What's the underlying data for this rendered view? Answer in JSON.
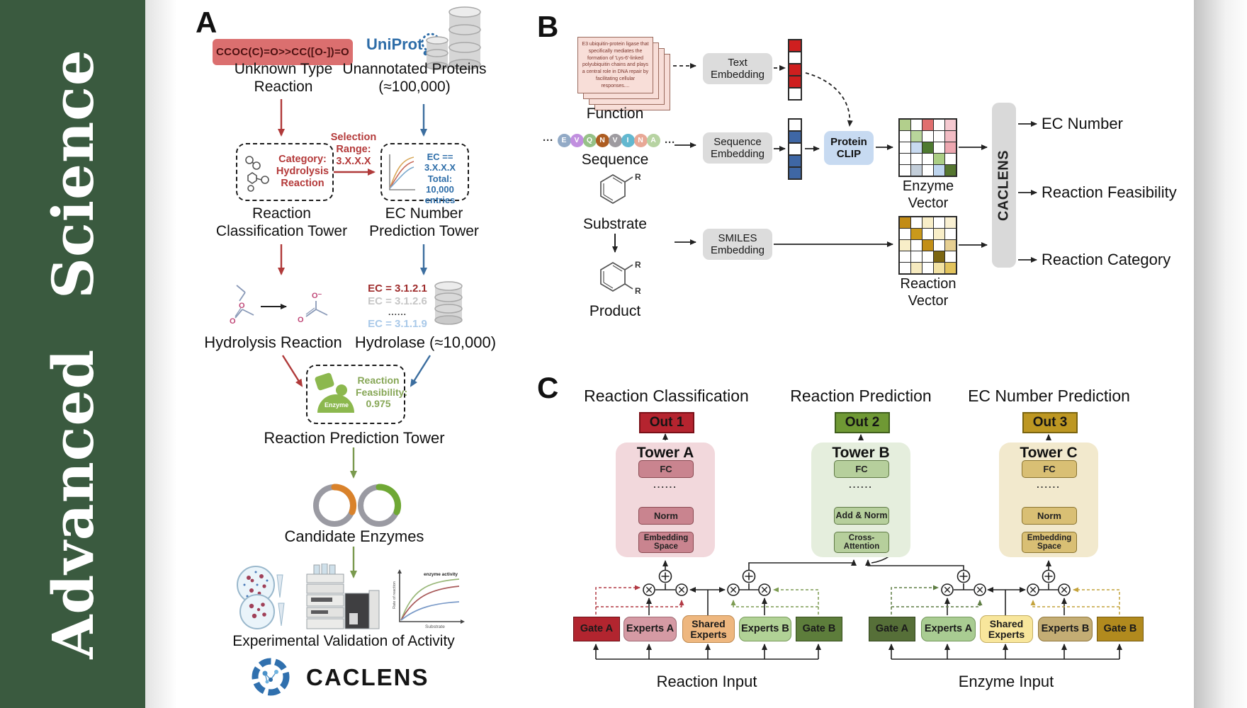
{
  "journal": {
    "name": "Advanced Science"
  },
  "panelA": {
    "label": "A",
    "smiles": "CCOC(C)=O>>CC([O-])=O",
    "unknown_type": "Unknown Type Reaction",
    "uniprot": "UniProt",
    "unannotated": "Unannotated Proteins (≈100,000)",
    "selection": "Selection Range: 3.X.X.X",
    "category": "Category: Hydrolysis Reaction",
    "classification_tower": "Reaction Classification Tower",
    "ec_filter": "EC == 3.X.X.X Total: 10,000 entries",
    "prediction_tower": "EC Number Prediction Tower",
    "hydrolysis": "Hydrolysis Reaction",
    "ec_list": [
      "EC = 3.1.2.1",
      "EC = 3.1.2.6",
      "......",
      "EC = 3.1.1.9"
    ],
    "hydrolase": "Hydrolase (≈10,000)",
    "enzyme": "Enzyme",
    "feasibility": "Reaction Feasibility: 0.975",
    "reaction_prediction_tower": "Reaction Prediction Tower",
    "candidate": "Candidate Enzymes",
    "activity_graph": {
      "ylabel": "Rate of reaction",
      "xlabel": "Substrate",
      "annotation": "enzyme activity"
    },
    "validation": "Experimental Validation of Activity",
    "wordmark": "CACLENS"
  },
  "panelB": {
    "label": "B",
    "function_text": "E3 ubiquitin-protein ligase that specifically mediates the formation of 'Lys-6'-linked polyubiquitin chains and plays a central role in DNA repair by facilitating cellular responses....",
    "function": "Function",
    "dots": "···",
    "residues": [
      {
        "t": "E",
        "c": "#92aac6"
      },
      {
        "t": "V",
        "c": "#c18fdf"
      },
      {
        "t": "Q",
        "c": "#96c187"
      },
      {
        "t": "N",
        "c": "#ad5c21"
      },
      {
        "t": "V",
        "c": "#9e9ba0"
      },
      {
        "t": "I",
        "c": "#62b8d0"
      },
      {
        "t": "N",
        "c": "#e8a896"
      },
      {
        "t": "A",
        "c": "#b7d3a2"
      }
    ],
    "sequence": "Sequence",
    "substrate": "Substrate",
    "product": "Product",
    "r_label": "R",
    "text_embedding": "Text Embedding",
    "sequence_embedding": "Sequence Embedding",
    "smiles_embedding": "SMILES Embedding",
    "protein_clip": "Protein CLIP",
    "text_vector": [
      "#cf1f1f",
      "#ffffff",
      "#cf1f1f",
      "#cf1f1f",
      "#ffffff"
    ],
    "sequence_vector": [
      "#ffffff",
      "#3f67a5",
      "#ffffff",
      "#3f67a5",
      "#3f67a5"
    ],
    "enzyme_matrix": [
      [
        "#b2cf8c",
        "#ffffff",
        "#e06f6f",
        "#ffffff",
        "#f5c9d0"
      ],
      [
        "#ffffff",
        "#b9d59b",
        "#ffffff",
        "#ffffff",
        "#f2bcc4"
      ],
      [
        "#ffffff",
        "#c8daf0",
        "#4e7a30",
        "#ffffff",
        "#eda7b0"
      ],
      [
        "#ffffff",
        "#ffffff",
        "#ffffff",
        "#abce84",
        "#ffffff"
      ],
      [
        "#ffffff",
        "#c3ced9",
        "#ffffff",
        "#bed5ee",
        "#55762f"
      ]
    ],
    "reaction_matrix": [
      [
        "#c28c17",
        "#ffffff",
        "#f8eec8",
        "#ffffff",
        "#f9f0d2"
      ],
      [
        "#ffffff",
        "#c9991b",
        "#ffffff",
        "#f8eec8",
        "#ffffff"
      ],
      [
        "#f8eec8",
        "#ffffff",
        "#c28f18",
        "#ffffff",
        "#e6cf92"
      ],
      [
        "#ffffff",
        "#ffffff",
        "#ffffff",
        "#7c6612",
        "#ffffff"
      ],
      [
        "#ffffff",
        "#f6eabf",
        "#ffffff",
        "#f2e2a4",
        "#e2c35c"
      ]
    ],
    "enzyme_vector": "Enzyme Vector",
    "reaction_vector": "Reaction Vector",
    "caclens": "CACLENS",
    "outputs": [
      "EC Number",
      "Reaction Feasibility",
      "Reaction Category"
    ]
  },
  "panelC": {
    "label": "C",
    "headers": [
      "Reaction Classification",
      "Reaction Prediction",
      "EC Number Prediction"
    ],
    "outs": [
      "Out 1",
      "Out 2",
      "Out 3"
    ],
    "towers": [
      {
        "title": "Tower A",
        "top": "FC",
        "dots": "......",
        "mid": "Norm",
        "bottom": "Embedding Space"
      },
      {
        "title": "Tower B",
        "top": "FC",
        "dots": "......",
        "mid": "Add & Norm",
        "bottom": "Cross-Attention"
      },
      {
        "title": "Tower C",
        "top": "FC",
        "dots": "......",
        "mid": "Norm",
        "bottom": "Embedding Space"
      }
    ],
    "reaction_group": {
      "gate_a": "Gate A",
      "experts_a": "Experts A",
      "shared": "Shared Experts",
      "experts_b": "Experts B",
      "gate_b": "Gate B",
      "input": "Reaction Input"
    },
    "enzyme_group": {
      "gate_a": "Gate A",
      "experts_a": "Experts A",
      "shared": "Shared Experts",
      "experts_b": "Experts B",
      "gate_b": "Gate B",
      "input": "Enzyme Input"
    }
  }
}
